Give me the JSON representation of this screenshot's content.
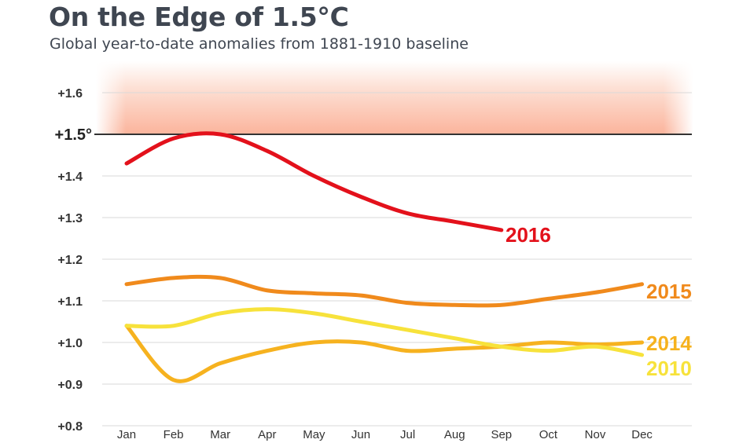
{
  "header": {
    "title": "On the Edge of 1.5°C",
    "subtitle": "Global year-to-date anomalies from 1881-1910 baseline"
  },
  "chart_data": {
    "type": "line",
    "title": "On the Edge of 1.5°C",
    "subtitle": "Global year-to-date anomalies from 1881-1910 baseline",
    "categories": [
      "Jan",
      "Feb",
      "Mar",
      "Apr",
      "May",
      "Jun",
      "Jul",
      "Aug",
      "Sep",
      "Oct",
      "Nov",
      "Dec"
    ],
    "y_ticks": [
      {
        "value": 1.6,
        "label": "+1.6"
      },
      {
        "value": 1.5,
        "label": "+1.5°"
      },
      {
        "value": 1.4,
        "label": "+1.4"
      },
      {
        "value": 1.3,
        "label": "+1.3"
      },
      {
        "value": 1.2,
        "label": "+1.2"
      },
      {
        "value": 1.1,
        "label": "+1.1"
      },
      {
        "value": 1.0,
        "label": "+1.0"
      },
      {
        "value": 0.9,
        "label": "+0.9"
      },
      {
        "value": 0.8,
        "label": "+0.8"
      }
    ],
    "ylim": [
      0.8,
      1.6
    ],
    "grid": true,
    "threshold": {
      "value": 1.5,
      "label": "+1.5°",
      "shaded_above": true
    },
    "series": [
      {
        "name": "2016",
        "color": "#e3111b",
        "values": [
          1.43,
          1.49,
          1.5,
          1.46,
          1.4,
          1.35,
          1.31,
          1.29,
          1.27,
          null,
          null,
          null
        ]
      },
      {
        "name": "2015",
        "color": "#f08a1c",
        "values": [
          1.14,
          1.155,
          1.155,
          1.125,
          1.118,
          1.113,
          1.095,
          1.09,
          1.09,
          1.105,
          1.12,
          1.14
        ]
      },
      {
        "name": "2014",
        "color": "#f6b21f",
        "values": [
          1.04,
          0.91,
          0.95,
          0.98,
          1.0,
          1.0,
          0.98,
          0.985,
          0.99,
          1.0,
          0.995,
          1.0
        ]
      },
      {
        "name": "2010",
        "color": "#f7e23b",
        "values": [
          1.04,
          1.04,
          1.07,
          1.08,
          1.07,
          1.05,
          1.03,
          1.01,
          0.99,
          0.98,
          0.99,
          0.97
        ]
      }
    ]
  }
}
